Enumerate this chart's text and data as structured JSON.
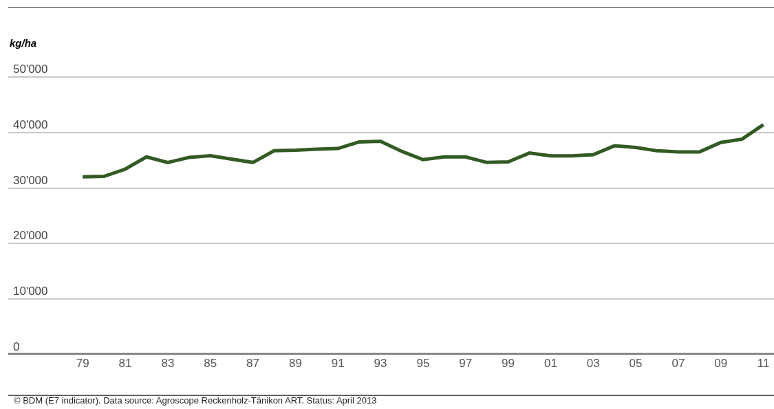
{
  "chart_data": {
    "type": "line",
    "ylabel": "kg/ha",
    "x": [
      1979,
      1980,
      1981,
      1982,
      1983,
      1984,
      1985,
      1986,
      1987,
      1988,
      1989,
      1990,
      1991,
      1992,
      1993,
      1994,
      1995,
      1996,
      1997,
      1998,
      1999,
      2000,
      2001,
      2002,
      2003,
      2004,
      2005,
      2006,
      2007,
      2008,
      2009,
      2010,
      2011
    ],
    "series": [
      {
        "color": "#325a23",
        "values": [
          32000,
          32100,
          33400,
          35600,
          34600,
          35500,
          35800,
          35200,
          34600,
          36700,
          36800,
          37000,
          37100,
          38300,
          38400,
          36600,
          35100,
          35600,
          35600,
          34600,
          34700,
          36300,
          35800,
          35800,
          36000,
          37600,
          37300,
          36700,
          36500,
          36500,
          38200,
          38800,
          41400
        ]
      }
    ],
    "xlim": [
      1975.5,
      2011.5
    ],
    "xticks": [
      {
        "value": 1979,
        "label": "79"
      },
      {
        "value": 1981,
        "label": "81"
      },
      {
        "value": 1983,
        "label": "83"
      },
      {
        "value": 1985,
        "label": "85"
      },
      {
        "value": 1987,
        "label": "87"
      },
      {
        "value": 1989,
        "label": "89"
      },
      {
        "value": 1991,
        "label": "91"
      },
      {
        "value": 1993,
        "label": "93"
      },
      {
        "value": 1995,
        "label": "95"
      },
      {
        "value": 1997,
        "label": "97"
      },
      {
        "value": 1999,
        "label": "99"
      },
      {
        "value": 2001,
        "label": "01"
      },
      {
        "value": 2003,
        "label": "03"
      },
      {
        "value": 2005,
        "label": "05"
      },
      {
        "value": 2007,
        "label": "07"
      },
      {
        "value": 2009,
        "label": "09"
      },
      {
        "value": 2011,
        "label": "11"
      }
    ],
    "ylim": [
      0,
      62600
    ],
    "yticks": [
      0,
      {
        "value": 10000,
        "label": "10'000"
      },
      {
        "value": 20000,
        "label": "20'000"
      },
      {
        "value": 30000,
        "label": "30'000"
      },
      {
        "value": 40000,
        "label": "40'000"
      },
      {
        "value": 50000,
        "label": "50'000"
      }
    ],
    "grid": "y",
    "marker": "none",
    "line_style": "solid",
    "annotations": [
      "© BDM (E7 indicator). Data source: Agroscope Reckenholz-Tänikon ART. Status: April 2013"
    ]
  }
}
